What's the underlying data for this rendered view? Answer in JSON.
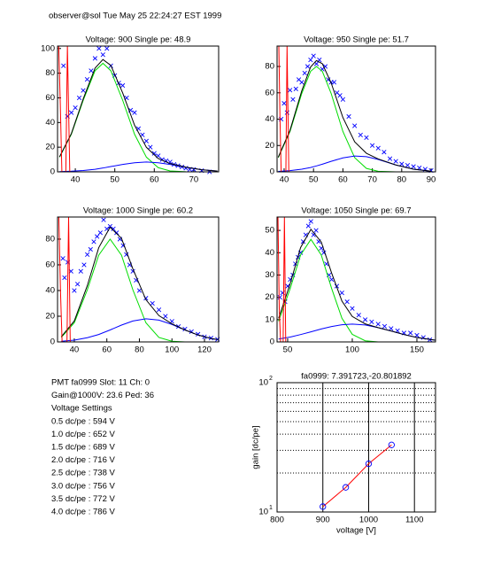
{
  "header": {
    "text": "observer@sol  Tue May 25 22:24:27 EST 1999"
  },
  "info": {
    "lines": [
      "PMT fa0999 Slot: 11 Ch: 0",
      "Gain@1000V: 23.6 Ped: 36",
      "Voltage Settings",
      "0.5 dc/pe : 594 V",
      "1.0 dc/pe : 652 V",
      "1.5 dc/pe : 689 V",
      "2.0 dc/pe : 716 V",
      "2.5 dc/pe : 738 V",
      "3.0 dc/pe : 756 V",
      "3.5 dc/pe : 772 V",
      "4.0 dc/pe : 786 V"
    ]
  },
  "chart_data": [
    {
      "type": "scatter",
      "title": "Voltage: 900 Single pe: 48.9",
      "xlim": [
        35.5,
        76.3
      ],
      "xticks": [
        40,
        50,
        60,
        70
      ],
      "ylim": [
        0,
        102
      ],
      "yticks": [
        0,
        20,
        40,
        60,
        80,
        100
      ],
      "series": [
        {
          "style": "marker",
          "marker": "x",
          "color": "#0000ff",
          "x": [
            37,
            38,
            39,
            40,
            41,
            42,
            43,
            44,
            45,
            46,
            47,
            48,
            49,
            50,
            51,
            52,
            53,
            54,
            55,
            56,
            57,
            58,
            59,
            60,
            61,
            62,
            63,
            64,
            65,
            66,
            67,
            68,
            69,
            70,
            72,
            74
          ],
          "values": [
            86,
            45,
            48,
            52,
            60,
            66,
            75,
            82,
            92,
            100,
            95,
            100,
            86,
            78,
            72,
            70,
            60,
            50,
            48,
            35,
            30,
            25,
            20,
            15,
            13,
            10,
            9,
            8,
            6,
            5,
            4,
            3,
            2,
            2,
            1,
            0
          ]
        },
        {
          "style": "line",
          "color": "#00dd00",
          "x": [
            36,
            39,
            42,
            45,
            47,
            49,
            52,
            55,
            58,
            61,
            64,
            68,
            72,
            76
          ],
          "values": [
            11.9,
            30.5,
            58,
            82,
            88,
            82,
            58,
            30.5,
            11.9,
            3.4,
            0.7,
            0.1,
            0,
            0
          ]
        },
        {
          "style": "line",
          "color": "#0000ff",
          "x": [
            36,
            39,
            42,
            45,
            47,
            49,
            52,
            55,
            58,
            61,
            64,
            68,
            72,
            76
          ],
          "values": [
            0.2,
            0.5,
            1.1,
            2.1,
            3.1,
            4.3,
            6,
            7.4,
            8,
            7.4,
            6,
            3.7,
            1.7,
            0.6
          ]
        },
        {
          "style": "line",
          "color": "#000000",
          "x": [
            36,
            39,
            42,
            45,
            47,
            49,
            52,
            55,
            58,
            61,
            64,
            68,
            72,
            76
          ],
          "values": [
            12.1,
            31,
            59.1,
            84.1,
            91.1,
            86.3,
            64,
            37.9,
            19.9,
            10.8,
            6.7,
            3.8,
            1.7,
            0.6
          ]
        },
        {
          "style": "line",
          "color": "#ff0000",
          "x": [
            35.8,
            36.2,
            36.6,
            37.6,
            38.0,
            38.6
          ],
          "values": [
            102,
            55,
            0,
            0,
            102,
            0
          ]
        }
      ]
    },
    {
      "type": "scatter",
      "title": "Voltage: 950 Single pe: 51.7",
      "xlim": [
        37.6,
        91.5
      ],
      "xticks": [
        40,
        50,
        60,
        70,
        80,
        90
      ],
      "ylim": [
        0,
        95.5
      ],
      "yticks": [
        0,
        20,
        40,
        60,
        80
      ],
      "series": [
        {
          "style": "marker",
          "marker": "x",
          "color": "#0000ff",
          "x": [
            39,
            40,
            41,
            42,
            43,
            44,
            45,
            46,
            47,
            48,
            49,
            50,
            51,
            52,
            53,
            54,
            55,
            56,
            57,
            58,
            59,
            60,
            62,
            64,
            66,
            68,
            70,
            72,
            74,
            76,
            78,
            80,
            82,
            84,
            86,
            88,
            90
          ],
          "values": [
            40,
            52,
            45,
            62,
            55,
            63,
            70,
            68,
            75,
            80,
            85,
            88,
            82,
            85,
            78,
            80,
            70,
            68,
            68,
            60,
            58,
            55,
            42,
            35,
            28,
            26,
            20,
            18,
            15,
            10,
            8,
            6,
            5,
            4,
            3,
            2,
            1
          ]
        },
        {
          "style": "line",
          "color": "#00dd00",
          "x": [
            38,
            42,
            46,
            49,
            51,
            53,
            56,
            60,
            64,
            68,
            72,
            78,
            84,
            90
          ],
          "values": [
            10.8,
            30.6,
            59.5,
            76.3,
            80,
            76.3,
            59.5,
            30.6,
            10.8,
            2.6,
            0.4,
            0,
            0,
            0
          ]
        },
        {
          "style": "line",
          "color": "#0000ff",
          "x": [
            38,
            42,
            46,
            49,
            51,
            53,
            56,
            60,
            64,
            68,
            72,
            78,
            84,
            90
          ],
          "values": [
            0.3,
            0.9,
            2,
            3.3,
            4.5,
            5.8,
            8,
            10.6,
            12,
            11.5,
            9.4,
            5.2,
            2,
            0.5
          ]
        },
        {
          "style": "line",
          "color": "#000000",
          "x": [
            38,
            42,
            46,
            49,
            51,
            53,
            56,
            60,
            64,
            68,
            72,
            78,
            84,
            90
          ],
          "values": [
            11.1,
            31.5,
            61.5,
            79.6,
            84.5,
            82.1,
            67.5,
            41.2,
            22.8,
            14.1,
            9.8,
            5.2,
            2,
            0.5
          ]
        },
        {
          "style": "line",
          "color": "#ff0000",
          "x": [
            38.2,
            38.6,
            39.0,
            40.6,
            41.0,
            41.6
          ],
          "values": [
            95.5,
            40,
            0,
            0,
            95.5,
            0
          ]
        }
      ]
    },
    {
      "type": "scatter",
      "title": "Voltage: 1000 Single pe: 60.2",
      "xlim": [
        29.7,
        128.7
      ],
      "xticks": [
        40,
        60,
        80,
        100,
        120
      ],
      "ylim": [
        0,
        97.2
      ],
      "yticks": [
        0,
        20,
        40,
        60,
        80
      ],
      "series": [
        {
          "style": "marker",
          "marker": "x",
          "color": "#0000ff",
          "x": [
            33,
            34,
            36,
            38,
            40,
            42,
            44,
            46,
            48,
            50,
            52,
            54,
            56,
            58,
            60,
            62,
            64,
            66,
            68,
            70,
            72,
            74,
            76,
            78,
            80,
            84,
            88,
            92,
            96,
            100,
            104,
            108,
            112,
            116,
            120,
            124,
            128
          ],
          "values": [
            65,
            50,
            62,
            55,
            40,
            45,
            55,
            60,
            68,
            72,
            78,
            82,
            85,
            95,
            88,
            90,
            88,
            85,
            80,
            75,
            68,
            60,
            55,
            48,
            40,
            34,
            30,
            25,
            20,
            16,
            12,
            10,
            8,
            6,
            4,
            3,
            2
          ]
        },
        {
          "style": "line",
          "color": "#00dd00",
          "x": [
            32,
            40,
            48,
            55,
            62,
            69,
            76,
            84,
            92,
            100,
            108,
            116,
            124,
            128
          ],
          "values": [
            3.5,
            14.9,
            40.5,
            67.5,
            80,
            67.5,
            40.5,
            14.9,
            3.5,
            0.5,
            0,
            0,
            0,
            0
          ]
        },
        {
          "style": "line",
          "color": "#0000ff",
          "x": [
            32,
            40,
            48,
            55,
            62,
            69,
            76,
            84,
            92,
            100,
            108,
            116,
            124,
            128
          ],
          "values": [
            0.5,
            1.4,
            3.3,
            5.8,
            9.3,
            13.1,
            16.3,
            18,
            17,
            13.6,
            9.3,
            5.4,
            2.7,
            1.8
          ]
        },
        {
          "style": "line",
          "color": "#000000",
          "x": [
            32,
            40,
            48,
            55,
            62,
            69,
            76,
            84,
            92,
            100,
            108,
            116,
            124,
            128
          ],
          "values": [
            4,
            16.3,
            43.8,
            73.3,
            89.3,
            80.6,
            56.8,
            32.9,
            20.5,
            14.1,
            9.3,
            5.4,
            2.7,
            1.8
          ]
        },
        {
          "style": "line",
          "color": "#ff0000",
          "x": [
            30.5,
            31.5,
            32.5,
            35.5,
            36.5,
            37.5
          ],
          "values": [
            97.2,
            40,
            0,
            0,
            97.2,
            0
          ]
        }
      ]
    },
    {
      "type": "scatter",
      "title": "Voltage: 1050 Single pe: 69.7",
      "xlim": [
        41.8,
        164.4
      ],
      "xticks": [
        50,
        100,
        150
      ],
      "ylim": [
        0,
        56
      ],
      "yticks": [
        0,
        10,
        20,
        30,
        40,
        50
      ],
      "series": [
        {
          "style": "marker",
          "marker": "x",
          "color": "#0000ff",
          "x": [
            44,
            46,
            48,
            50,
            52,
            54,
            56,
            58,
            60,
            62,
            64,
            66,
            68,
            70,
            72,
            74,
            76,
            78,
            80,
            82,
            84,
            88,
            92,
            96,
            100,
            105,
            110,
            115,
            120,
            125,
            130,
            135,
            140,
            145,
            150,
            155,
            160
          ],
          "values": [
            20,
            22,
            18,
            25,
            28,
            30,
            35,
            38,
            40,
            45,
            48,
            52,
            54,
            48,
            50,
            45,
            42,
            40,
            35,
            30,
            28,
            25,
            22,
            18,
            15,
            12,
            10,
            9,
            8,
            7,
            6,
            5,
            4,
            4,
            3,
            2,
            1
          ]
        },
        {
          "style": "line",
          "color": "#00dd00",
          "x": [
            43,
            52,
            60,
            68,
            76,
            84,
            92,
            100,
            110,
            120,
            130,
            140,
            150,
            164
          ],
          "values": [
            9.3,
            24,
            39,
            46,
            39,
            24,
            10.6,
            3.4,
            0.5,
            0,
            0,
            0,
            0,
            0
          ]
        },
        {
          "style": "line",
          "color": "#0000ff",
          "x": [
            43,
            52,
            60,
            68,
            76,
            84,
            92,
            100,
            110,
            120,
            130,
            140,
            150,
            164
          ],
          "values": [
            1.3,
            2.2,
            3.3,
            4.5,
            5.8,
            6.9,
            7.7,
            8,
            7.6,
            6.4,
            4.9,
            3.3,
            2,
            0.8
          ]
        },
        {
          "style": "line",
          "color": "#000000",
          "x": [
            43,
            52,
            60,
            68,
            76,
            84,
            92,
            100,
            110,
            120,
            130,
            140,
            150,
            164
          ],
          "values": [
            10.6,
            26.2,
            42.3,
            50.5,
            44.8,
            30.9,
            18.3,
            11.4,
            8.1,
            6.4,
            4.9,
            3.3,
            2,
            0.8
          ]
        },
        {
          "style": "line",
          "color": "#ff0000",
          "x": [
            42.5,
            43.5,
            44.5,
            46.5,
            47.5,
            48.5
          ],
          "values": [
            56,
            15,
            0,
            0,
            56,
            0
          ]
        }
      ]
    },
    {
      "type": "line",
      "title": "fa0999: 7.391723,-20.801892",
      "xlabel": "voltage [V]",
      "ylabel": "gain [dc/pe]",
      "log_y": true,
      "xlim": [
        800,
        1146
      ],
      "xticks": [
        800,
        900,
        1000,
        1100
      ],
      "xgrid": true,
      "ylim": [
        10,
        100
      ],
      "yticks": [
        {
          "value": 10,
          "label": "10",
          "exponent": "1"
        },
        {
          "value": 100,
          "label": "10",
          "exponent": "2"
        }
      ],
      "yminor": [
        20,
        30,
        40,
        50,
        60,
        70,
        80,
        90
      ],
      "series": [
        {
          "style": "line",
          "color": "#ff0000",
          "marker": "o",
          "marker_color": "#0000ff",
          "x": [
            900,
            950,
            1000,
            1050
          ],
          "values": [
            11,
            15.5,
            23.6,
            33
          ]
        }
      ]
    }
  ]
}
